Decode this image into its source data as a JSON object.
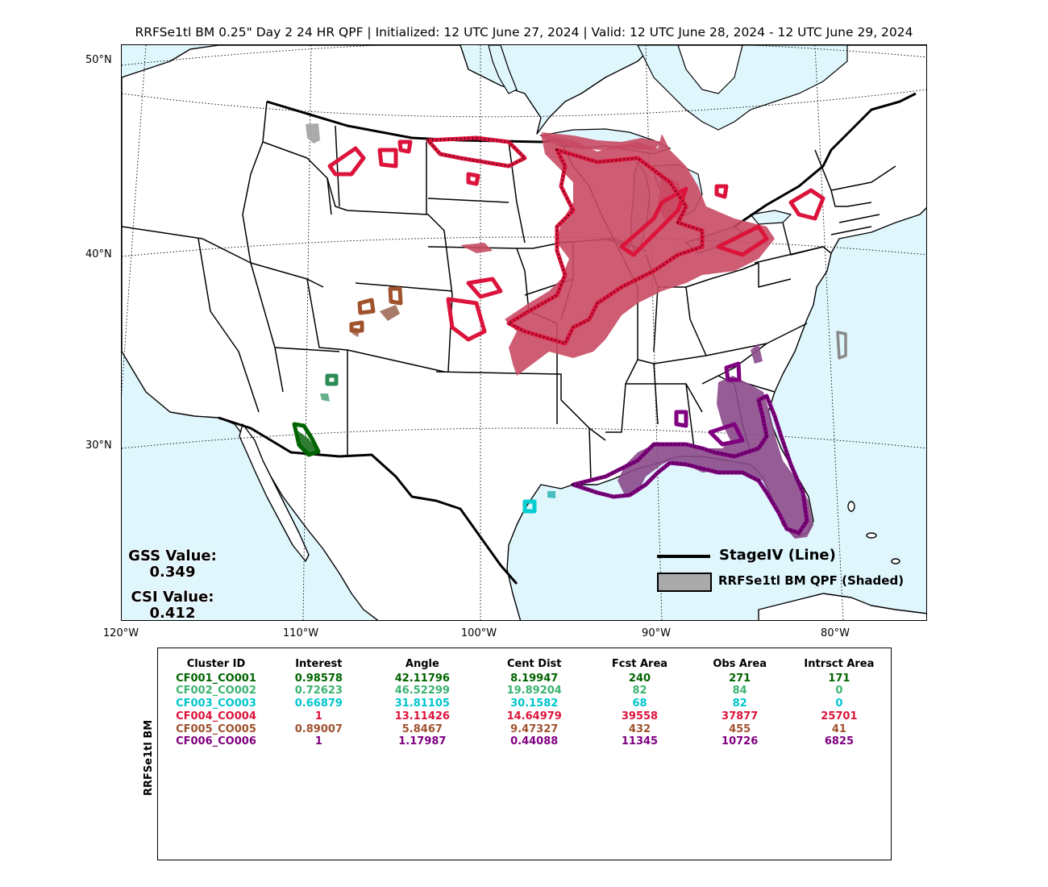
{
  "title": "RRFSe1tl BM 0.25\" Day 2 24 HR QPF | Initialized: 12 UTC June 27, 2024 | Valid: 12 UTC June 28, 2024 - 12 UTC June 29, 2024",
  "map": {
    "ocean_color": "#dff6fd",
    "land_color": "#ffffff",
    "lat_labels": [
      "50°N",
      "40°N",
      "30°N"
    ],
    "lon_labels": [
      "120°W",
      "110°W",
      "100°W",
      "90°W",
      "80°W"
    ]
  },
  "scores": {
    "gss_label": "GSS Value:",
    "gss_value": "0.349",
    "csi_label": "CSI Value:",
    "csi_value": "0.412"
  },
  "legend": {
    "line_label": "StageIV (Line)",
    "shaded_label": "RRFSe1tl BM QPF (Shaded)"
  },
  "table": {
    "ylabel": "RRFSe1tl BM",
    "headers": [
      "Cluster ID",
      "Interest",
      "Angle",
      "Cent Dist",
      "Fcst Area",
      "Obs Area",
      "Intrsct Area"
    ],
    "rows": [
      {
        "id": "CF001_CO001",
        "interest": "0.98578",
        "angle": "42.11796",
        "cent_dist": "8.19947",
        "fcst_area": "240",
        "obs_area": "271",
        "intrsct_area": "171",
        "color": "#006400"
      },
      {
        "id": "CF002_CO002",
        "interest": "0.72623",
        "angle": "46.52299",
        "cent_dist": "19.89204",
        "fcst_area": "82",
        "obs_area": "84",
        "intrsct_area": "0",
        "color": "#3cb371"
      },
      {
        "id": "CF003_CO003",
        "interest": "0.66879",
        "angle": "31.81105",
        "cent_dist": "30.1582",
        "fcst_area": "68",
        "obs_area": "82",
        "intrsct_area": "0",
        "color": "#00c5cd"
      },
      {
        "id": "CF004_CO004",
        "interest": "1",
        "angle": "13.11426",
        "cent_dist": "14.64979",
        "fcst_area": "39558",
        "obs_area": "37877",
        "intrsct_area": "25701",
        "color": "#dc143c"
      },
      {
        "id": "CF005_CO005",
        "interest": "0.89007",
        "angle": "5.8467",
        "cent_dist": "9.47327",
        "fcst_area": "432",
        "obs_area": "455",
        "intrsct_area": "41",
        "color": "#a0522d"
      },
      {
        "id": "CF006_CO006",
        "interest": "1",
        "angle": "1.17987",
        "cent_dist": "0.44088",
        "fcst_area": "11345",
        "obs_area": "10726",
        "intrsct_area": "6825",
        "color": "#800080"
      }
    ]
  },
  "clusters": [
    {
      "id": "CF001_CO001",
      "fill": "#2e7d32",
      "line": "#006400"
    },
    {
      "id": "CF002_CO002",
      "fill": "#66b08a",
      "line": "#2e8b57"
    },
    {
      "id": "CF003_CO003",
      "fill": "#48c0c0",
      "line": "#00ced1"
    },
    {
      "id": "CF004_CO004",
      "fill": "#c94a63",
      "line": "#dc143c"
    },
    {
      "id": "CF005_CO005",
      "fill": "#a87a6a",
      "line": "#a0522d"
    },
    {
      "id": "CF006_CO006",
      "fill": "#8b4a8b",
      "line": "#800080"
    },
    {
      "id": "extra-gray",
      "fill": "#aaaaaa",
      "line": "#777777"
    }
  ]
}
